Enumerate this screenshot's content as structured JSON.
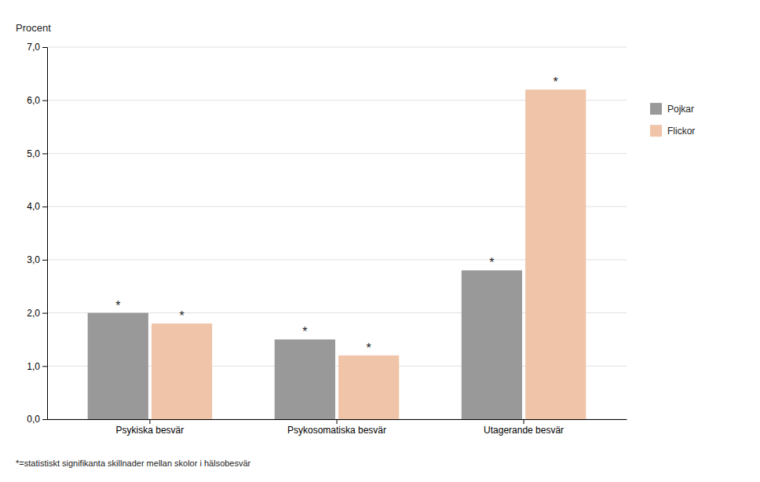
{
  "chart_data": {
    "type": "bar",
    "categories": [
      "Psykiska besvär",
      "Psykosomatiska besvär",
      "Utagerande besvär"
    ],
    "series": [
      {
        "name": "Pojkar",
        "color": "#999999",
        "values": [
          2.0,
          1.5,
          2.8
        ]
      },
      {
        "name": "Flickor",
        "color": "#f0c4a8",
        "values": [
          1.8,
          1.2,
          6.2
        ]
      }
    ],
    "ylabel": "Procent",
    "ylim": [
      0,
      7.0
    ],
    "yticks": [
      {
        "value": 0.0,
        "label": "0,0"
      },
      {
        "value": 1.0,
        "label": "1,0"
      },
      {
        "value": 2.0,
        "label": "2,0"
      },
      {
        "value": 3.0,
        "label": "3,0"
      },
      {
        "value": 4.0,
        "label": "4,0"
      },
      {
        "value": 5.0,
        "label": "5,0"
      },
      {
        "value": 6.0,
        "label": "6,0"
      },
      {
        "value": 7.0,
        "label": "7,0"
      }
    ],
    "grid": true,
    "legend": "right",
    "annotations": [
      {
        "text": "*",
        "category": "Psykiska besvär",
        "series": "Pojkar"
      },
      {
        "text": "*",
        "category": "Psykosomatiska besvär",
        "series": "Pojkar"
      },
      {
        "text": "*",
        "category": "Utagerande besvär",
        "series": "Pojkar"
      },
      {
        "text": "*",
        "category": "Psykiska besvär",
        "series": "Flickor"
      },
      {
        "text": "*",
        "category": "Psykosomatiska besvär",
        "series": "Flickor"
      },
      {
        "text": "*",
        "category": "Utagerande besvär",
        "series": "Flickor"
      }
    ],
    "footnote": "*=statistiskt signifikanta skillnader mellan skolor i hälsobesvär"
  }
}
